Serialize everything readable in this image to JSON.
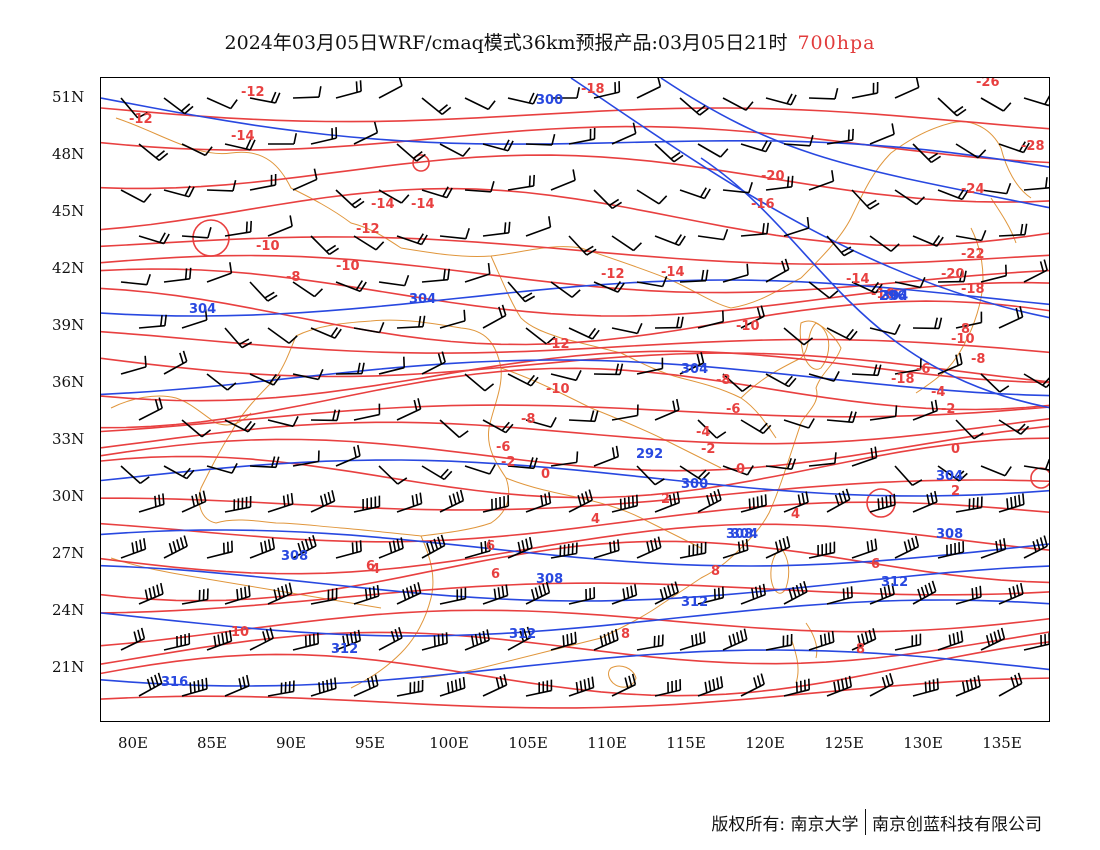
{
  "title": {
    "main": "2024年03月05日WRF/cmaq模式36km预报产品:03月05日21时",
    "level": "700hpa",
    "level_color": "#e23c3c"
  },
  "map": {
    "lat_labels": [
      "51N",
      "48N",
      "45N",
      "42N",
      "39N",
      "36N",
      "33N",
      "30N",
      "27N",
      "24N",
      "21N"
    ],
    "lon_labels": [
      "80E",
      "85E",
      "90E",
      "95E",
      "100E",
      "105E",
      "110E",
      "115E",
      "120E",
      "125E",
      "130E",
      "135E"
    ],
    "temperature_labels": [
      "-12",
      "-12",
      "-14",
      "-18",
      "-14",
      "-14",
      "-12",
      "-10",
      "-8",
      "-10",
      "-12",
      "-14",
      "-16",
      "-14",
      "-12",
      "-10",
      "-8",
      "-6",
      "-10",
      "-8",
      "-6",
      "-4",
      "-2",
      "0",
      "-2",
      "0",
      "2",
      "4",
      "6",
      "8",
      "10",
      "6",
      "4",
      "6",
      "8",
      "-22",
      "-20",
      "-18",
      "-24",
      "-26",
      "-28",
      "-20",
      "-16",
      "-18",
      "-10",
      "-8",
      "-6",
      "-4",
      "-2",
      "0",
      "2",
      "4",
      "6",
      "8",
      "8"
    ],
    "height_labels": [
      "300",
      "304",
      "304",
      "304",
      "304",
      "296",
      "292",
      "300",
      "304",
      "308",
      "308",
      "308",
      "308",
      "312",
      "312",
      "312",
      "312",
      "316",
      "304"
    ],
    "colors": {
      "temperature": "#e84040",
      "height": "#2848e0",
      "boundary": "#e0963c",
      "wind": "#000000"
    }
  },
  "footer": {
    "copyright": "版权所有: 南京大学",
    "company": "南京创蓝科技有限公司"
  }
}
